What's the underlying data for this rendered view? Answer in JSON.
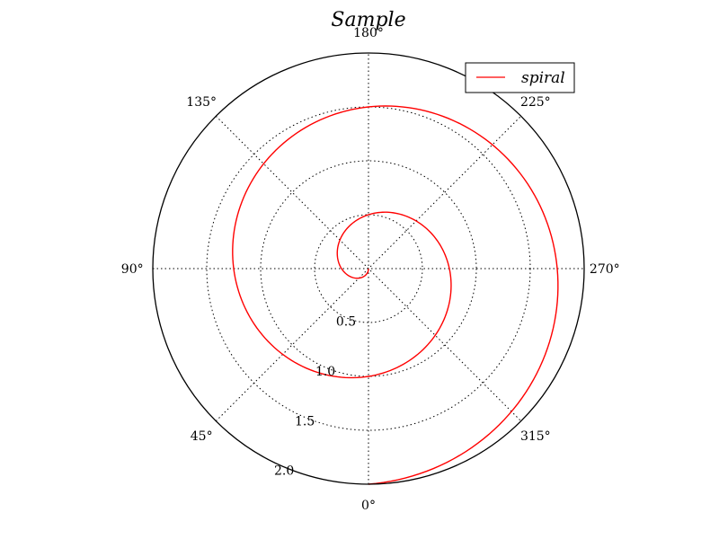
{
  "chart_data": {
    "type": "line",
    "projection": "polar",
    "title": "Sample",
    "theta_zero_location": "bottom",
    "theta_direction": "counterclockwise",
    "theta_tick_labels": [
      "0°",
      "45°",
      "90°",
      "135°",
      "180°",
      "225°",
      "270°",
      "315°"
    ],
    "r_ticks": [
      0.5,
      1.0,
      1.5,
      2.0
    ],
    "r_tick_labels": [
      "0.5",
      "1.0",
      "1.5",
      "2.0"
    ],
    "rlim": [
      0,
      2.0
    ],
    "grid": true,
    "legend": {
      "position": "top-right",
      "entries": [
        "spiral"
      ]
    },
    "series": [
      {
        "name": "spiral",
        "color": "#ff0000",
        "r_formula": "r = theta_radians / (2*pi)",
        "theta_range_deg": [
          0,
          720
        ],
        "r": [
          0.0,
          0.125,
          0.25,
          0.375,
          0.5,
          0.625,
          0.75,
          0.875,
          1.0,
          1.125,
          1.25,
          1.375,
          1.5,
          1.625,
          1.75,
          1.875,
          2.0
        ],
        "theta_deg": [
          0,
          45,
          90,
          135,
          180,
          225,
          270,
          315,
          360,
          405,
          450,
          495,
          540,
          585,
          630,
          675,
          720
        ]
      }
    ]
  }
}
